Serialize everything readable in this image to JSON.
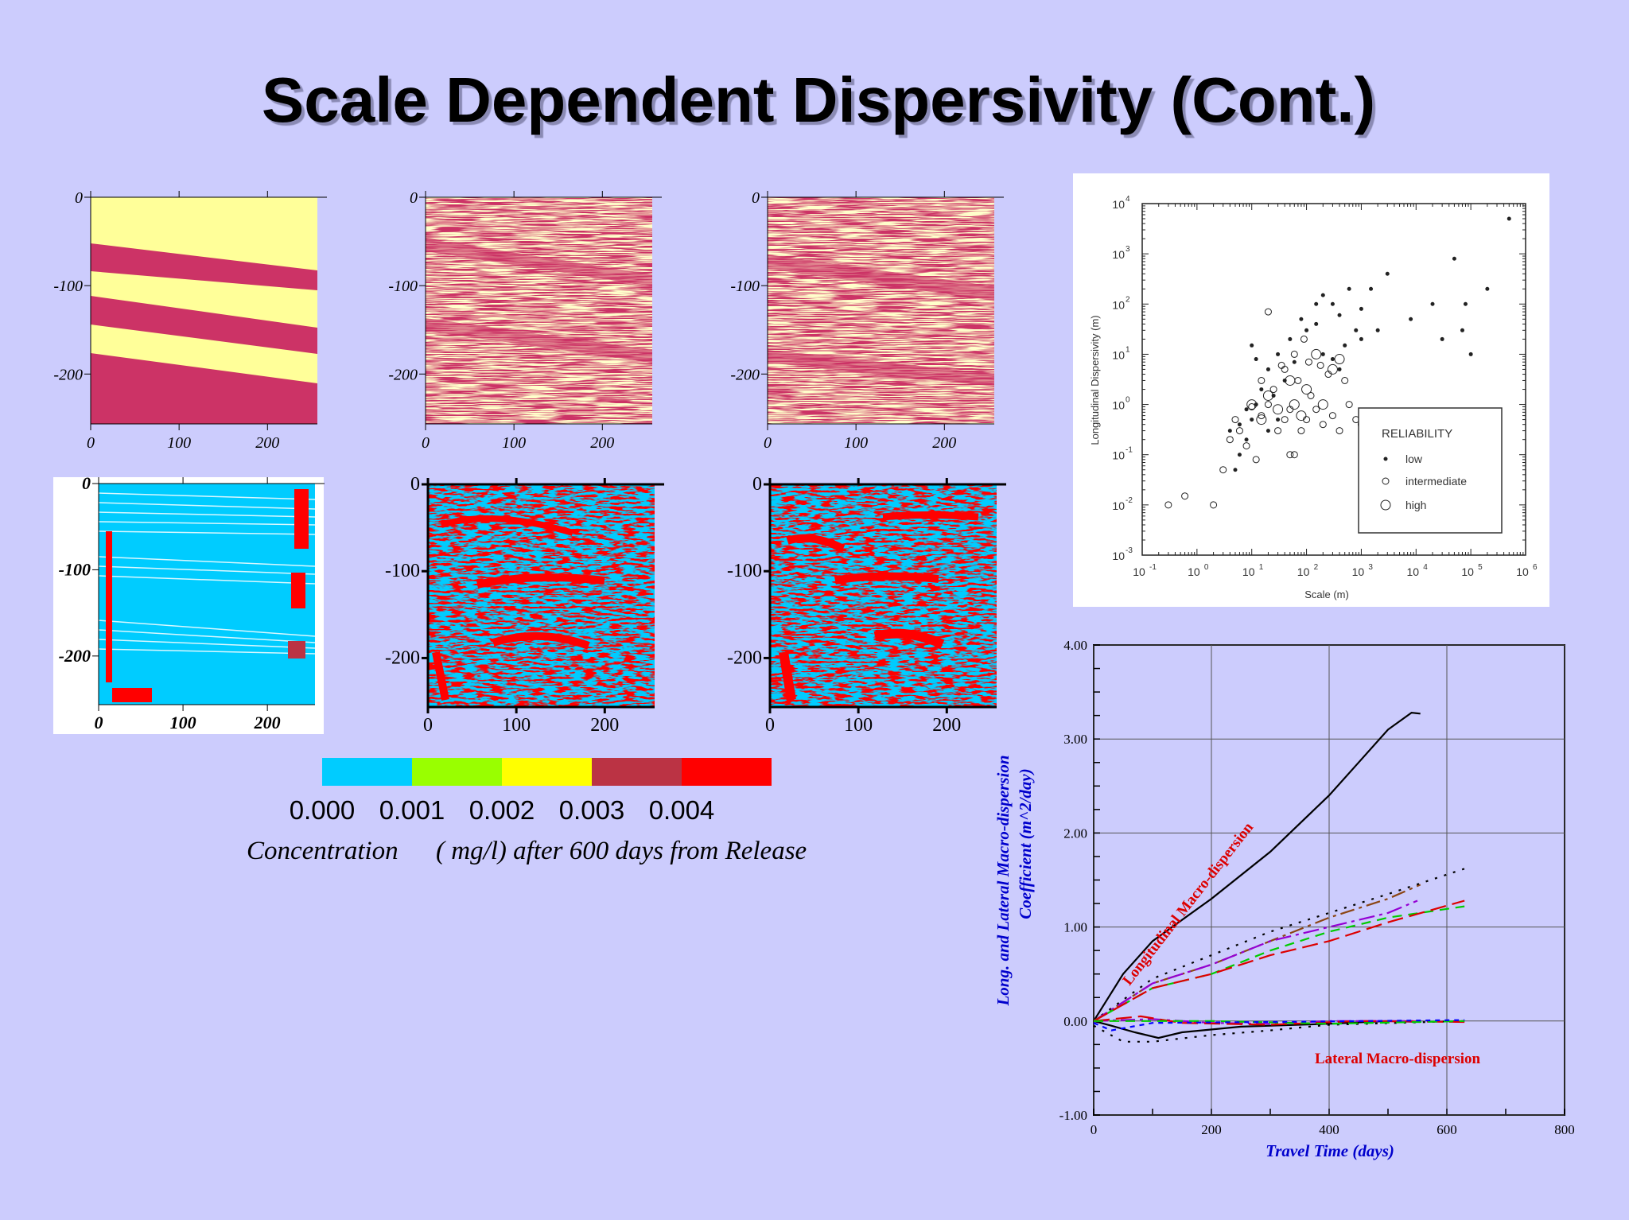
{
  "title": "Scale Dependent Dispersivity (Cont.)",
  "colors": {
    "background": "#ccccfd",
    "field_yellow": "#ffff99",
    "field_magenta": "#cc3366",
    "conc_cyan": "#00ccff",
    "conc_green": "#99ff00",
    "conc_yellow": "#ffff00",
    "conc_darkred": "#bb3344",
    "conc_red": "#ff0000"
  },
  "panels": {
    "y_ticks": [
      "0",
      "-100",
      "-200"
    ],
    "x_ticks": [
      "0",
      "100",
      "200"
    ]
  },
  "colorbar": {
    "colors": [
      "#00ccff",
      "#99ff00",
      "#ffff00",
      "#bb3344",
      "#ff0000"
    ],
    "labels": [
      "0.000",
      "0.001",
      "0.002",
      "0.003",
      "0.004"
    ],
    "caption_part1": "Concentration",
    "caption_part2": "( mg/l) after 600 days  from Release"
  },
  "chart_data": [
    {
      "type": "scatter",
      "ylabel": "Longitudinal  Dispersivity  (m)",
      "xlabel": "Scale (m)",
      "x_scale": "log",
      "y_scale": "log",
      "xlim": [
        0.1,
        1000000
      ],
      "ylim": [
        0.001,
        10000
      ],
      "x_tick_labels": [
        "10",
        "10",
        "10",
        "10",
        "10",
        "10",
        "10",
        "10"
      ],
      "x_tick_exponents": [
        "-1",
        "0",
        "1",
        "2",
        "3",
        "4",
        "5",
        "6"
      ],
      "y_tick_labels": [
        "10",
        "10",
        "10",
        "10",
        "10",
        "10",
        "10",
        "10"
      ],
      "y_tick_exponents": [
        "-3",
        "-2",
        "-1",
        "0",
        "1",
        "2",
        "3",
        "4"
      ],
      "legend": {
        "title": "RELIABILITY",
        "position": "bottom-right",
        "entries": [
          "low",
          "intermediate",
          "high"
        ]
      },
      "series": [
        {
          "name": "low",
          "points": [
            [
              5,
              0.05
            ],
            [
              6,
              0.1
            ],
            [
              8,
              0.2
            ],
            [
              10,
              0.5
            ],
            [
              12,
              1
            ],
            [
              15,
              2
            ],
            [
              20,
              5
            ],
            [
              8,
              0.8
            ],
            [
              30,
              10
            ],
            [
              40,
              3
            ],
            [
              50,
              20
            ],
            [
              60,
              7
            ],
            [
              80,
              50
            ],
            [
              100,
              30
            ],
            [
              150,
              100
            ],
            [
              200,
              150
            ],
            [
              300,
              100
            ],
            [
              400,
              60
            ],
            [
              600,
              200
            ],
            [
              800,
              30
            ],
            [
              1000,
              80
            ],
            [
              1500,
              200
            ],
            [
              2000,
              30
            ],
            [
              3000,
              400
            ],
            [
              8000,
              50
            ],
            [
              20000,
              100
            ],
            [
              30000,
              20
            ],
            [
              50000,
              800
            ],
            [
              70000,
              30
            ],
            [
              80000,
              100
            ],
            [
              100000,
              10
            ],
            [
              200000,
              200
            ],
            [
              500000,
              5000
            ],
            [
              300,
              8
            ],
            [
              500,
              15
            ],
            [
              1000,
              20
            ],
            [
              12,
              8
            ],
            [
              10,
              15
            ],
            [
              20,
              0.3
            ],
            [
              4,
              0.3
            ],
            [
              6,
              0.4
            ],
            [
              25,
              1.5
            ],
            [
              30,
              0.5
            ],
            [
              200,
              10
            ],
            [
              150,
              40
            ],
            [
              400,
              5
            ]
          ]
        },
        {
          "name": "intermediate",
          "points": [
            [
              0.3,
              0.01
            ],
            [
              0.6,
              0.015
            ],
            [
              2,
              0.01
            ],
            [
              3,
              0.05
            ],
            [
              4,
              0.2
            ],
            [
              5,
              0.5
            ],
            [
              6,
              0.3
            ],
            [
              8,
              0.15
            ],
            [
              12,
              0.08
            ],
            [
              15,
              0.6
            ],
            [
              20,
              1
            ],
            [
              25,
              2
            ],
            [
              30,
              0.3
            ],
            [
              40,
              0.5
            ],
            [
              50,
              0.8
            ],
            [
              60,
              0.1
            ],
            [
              80,
              0.3
            ],
            [
              100,
              0.5
            ],
            [
              120,
              1.5
            ],
            [
              150,
              0.8
            ],
            [
              200,
              0.4
            ],
            [
              300,
              0.6
            ],
            [
              400,
              0.3
            ],
            [
              600,
              1
            ],
            [
              800,
              0.5
            ],
            [
              1000,
              0.4
            ],
            [
              3000,
              0.3
            ],
            [
              20,
              70
            ],
            [
              40,
              5
            ],
            [
              50,
              0.1
            ],
            [
              70,
              3
            ],
            [
              90,
              20
            ],
            [
              110,
              7
            ],
            [
              180,
              6
            ],
            [
              250,
              4
            ],
            [
              500,
              3
            ],
            [
              10,
              0.9
            ],
            [
              15,
              3
            ],
            [
              35,
              6
            ],
            [
              60,
              10
            ]
          ]
        },
        {
          "name": "high",
          "points": [
            [
              10,
              1
            ],
            [
              15,
              0.5
            ],
            [
              20,
              1.5
            ],
            [
              30,
              0.8
            ],
            [
              50,
              3
            ],
            [
              60,
              1
            ],
            [
              80,
              0.6
            ],
            [
              100,
              2
            ],
            [
              150,
              10
            ],
            [
              200,
              1
            ],
            [
              300,
              5
            ],
            [
              400,
              8
            ]
          ]
        }
      ]
    },
    {
      "type": "line",
      "xlabel": "Travel Time (days)",
      "ylabel": "Long. and Lateral Macro-dispersion Coefficient (m^2/day)",
      "ylabel_line1": "Long. and Lateral Macro-dispersion",
      "ylabel_line2": "Coefficient (m^2/day)",
      "xlim": [
        0,
        800
      ],
      "ylim": [
        -1,
        4
      ],
      "x_ticks": [
        "0",
        "200",
        "400",
        "600",
        "800"
      ],
      "y_ticks": [
        "-1.00",
        "0.00",
        "1.00",
        "2.00",
        "3.00",
        "4.00"
      ],
      "grid": true,
      "annotations": [
        "Longitudinal Macro-dispersion",
        "Lateral Macro-dispersion"
      ],
      "series": [
        {
          "color": "#000000",
          "dash": "",
          "points": [
            [
              0,
              0
            ],
            [
              20,
              0.2
            ],
            [
              50,
              0.5
            ],
            [
              100,
              0.85
            ],
            [
              200,
              1.3
            ],
            [
              300,
              1.8
            ],
            [
              400,
              2.4
            ],
            [
              450,
              2.75
            ],
            [
              500,
              3.1
            ],
            [
              540,
              3.28
            ],
            [
              555,
              3.27
            ]
          ]
        },
        {
          "color": "#8b4513",
          "dash": "18,6,4,6",
          "points": [
            [
              0,
              0
            ],
            [
              100,
              0.4
            ],
            [
              200,
              0.6
            ],
            [
              300,
              0.85
            ],
            [
              400,
              1.1
            ],
            [
              500,
              1.3
            ],
            [
              555,
              1.45
            ]
          ]
        },
        {
          "color": "#000000",
          "dash": "3,9",
          "points": [
            [
              0,
              0
            ],
            [
              100,
              0.45
            ],
            [
              200,
              0.7
            ],
            [
              300,
              0.95
            ],
            [
              400,
              1.15
            ],
            [
              500,
              1.35
            ],
            [
              630,
              1.62
            ]
          ]
        },
        {
          "color": "#9400d3",
          "dash": "20,6,4,6",
          "points": [
            [
              0,
              0
            ],
            [
              100,
              0.4
            ],
            [
              200,
              0.6
            ],
            [
              300,
              0.85
            ],
            [
              400,
              1.0
            ],
            [
              500,
              1.15
            ],
            [
              550,
              1.28
            ]
          ]
        },
        {
          "color": "#00cc00",
          "dash": "12,8",
          "points": [
            [
              0,
              0
            ],
            [
              100,
              0.35
            ],
            [
              200,
              0.5
            ],
            [
              300,
              0.75
            ],
            [
              400,
              0.95
            ],
            [
              500,
              1.1
            ],
            [
              630,
              1.22
            ]
          ]
        },
        {
          "color": "#dd0000",
          "dash": "20,8",
          "points": [
            [
              0,
              0
            ],
            [
              100,
              0.35
            ],
            [
              200,
              0.5
            ],
            [
              300,
              0.7
            ],
            [
              400,
              0.85
            ],
            [
              500,
              1.05
            ],
            [
              630,
              1.28
            ]
          ]
        },
        {
          "color": "#000000",
          "dash": "",
          "points": [
            [
              0,
              0
            ],
            [
              30,
              -0.05
            ],
            [
              70,
              -0.12
            ],
            [
              110,
              -0.18
            ],
            [
              150,
              -0.12
            ],
            [
              250,
              -0.06
            ],
            [
              400,
              -0.03
            ],
            [
              500,
              0
            ],
            [
              555,
              -0.01
            ]
          ]
        },
        {
          "color": "#000000",
          "dash": "3,9",
          "points": [
            [
              0,
              -0.05
            ],
            [
              50,
              -0.22
            ],
            [
              100,
              -0.22
            ],
            [
              200,
              -0.15
            ],
            [
              300,
              -0.1
            ],
            [
              400,
              -0.04
            ],
            [
              630,
              0
            ]
          ]
        },
        {
          "color": "#9400d3",
          "dash": "18,6,4,6",
          "points": [
            [
              0,
              0
            ],
            [
              100,
              0.02
            ],
            [
              200,
              -0.02
            ],
            [
              300,
              -0.03
            ],
            [
              400,
              0
            ],
            [
              555,
              0
            ]
          ]
        },
        {
          "color": "#dd0000",
          "dash": "20,8",
          "points": [
            [
              0,
              0
            ],
            [
              80,
              0.05
            ],
            [
              150,
              -0.02
            ],
            [
              300,
              -0.04
            ],
            [
              450,
              0
            ],
            [
              630,
              -0.01
            ]
          ]
        },
        {
          "color": "#00cc00",
          "dash": "12,8",
          "points": [
            [
              0,
              0
            ],
            [
              200,
              0.0
            ],
            [
              400,
              -0.03
            ],
            [
              630,
              0
            ]
          ]
        },
        {
          "color": "#0000ff",
          "dash": "6,6",
          "points": [
            [
              0,
              -0.02
            ],
            [
              30,
              -0.1
            ],
            [
              100,
              -0.02
            ],
            [
              300,
              -0.01
            ],
            [
              630,
              0.01
            ]
          ]
        }
      ]
    }
  ]
}
